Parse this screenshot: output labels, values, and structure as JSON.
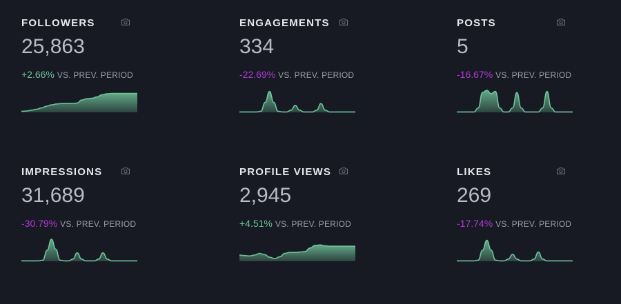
{
  "comparison_label": "VS. PREV. PERIOD",
  "colors": {
    "positive": "#6fc39a",
    "negative": "#b13ad8",
    "spark": "#6fc39a"
  },
  "cards": [
    {
      "title": "FOLLOWERS",
      "value": "25,863",
      "change": "+2.66%",
      "direction": "up",
      "icon": "camera-icon",
      "spark_style": "area-step",
      "spark": [
        0.05,
        0.06,
        0.1,
        0.14,
        0.2,
        0.28,
        0.34,
        0.38,
        0.4,
        0.4,
        0.4,
        0.42,
        0.56,
        0.62,
        0.64,
        0.7,
        0.8,
        0.84,
        0.86,
        0.86,
        0.86,
        0.86,
        0.86,
        0.86
      ]
    },
    {
      "title": "ENGAGEMENTS",
      "value": "334",
      "change": "-22.69%",
      "direction": "down",
      "icon": "camera-icon",
      "spark_style": "peaks",
      "spark": [
        0.02,
        0.02,
        0.02,
        0.02,
        0.02,
        0.05,
        0.45,
        0.95,
        0.45,
        0.05,
        0.02,
        0.02,
        0.1,
        0.32,
        0.1,
        0.02,
        0.02,
        0.02,
        0.1,
        0.4,
        0.1,
        0.02,
        0.02,
        0.02,
        0.02,
        0.02,
        0.02,
        0.02
      ]
    },
    {
      "title": "POSTS",
      "value": "5",
      "change": "-16.67%",
      "direction": "down",
      "icon": "camera-icon",
      "spark_style": "peaks",
      "spark": [
        0.02,
        0.02,
        0.02,
        0.02,
        0.02,
        0.2,
        0.9,
        1.0,
        0.85,
        0.95,
        0.2,
        0.02,
        0.02,
        0.2,
        0.9,
        0.2,
        0.02,
        0.02,
        0.02,
        0.02,
        0.2,
        0.95,
        0.2,
        0.02,
        0.02,
        0.02,
        0.02,
        0.02
      ]
    },
    {
      "title": "IMPRESSIONS",
      "value": "31,689",
      "change": "-30.79%",
      "direction": "down",
      "icon": "camera-icon",
      "spark_style": "peaks",
      "spark": [
        0.02,
        0.02,
        0.02,
        0.02,
        0.02,
        0.05,
        0.5,
        1.0,
        0.55,
        0.05,
        0.02,
        0.02,
        0.1,
        0.38,
        0.1,
        0.02,
        0.02,
        0.02,
        0.1,
        0.38,
        0.1,
        0.02,
        0.02,
        0.02,
        0.02,
        0.02,
        0.02,
        0.02
      ]
    },
    {
      "title": "PROFILE VIEWS",
      "value": "2,945",
      "change": "+4.51%",
      "direction": "up",
      "icon": "camera-icon",
      "spark_style": "area-step",
      "spark": [
        0.28,
        0.26,
        0.24,
        0.28,
        0.36,
        0.3,
        0.18,
        0.12,
        0.2,
        0.36,
        0.4,
        0.4,
        0.42,
        0.44,
        0.6,
        0.72,
        0.74,
        0.7,
        0.68,
        0.68,
        0.68,
        0.68,
        0.68,
        0.68
      ]
    },
    {
      "title": "LIKES",
      "value": "269",
      "change": "-17.74%",
      "direction": "down",
      "icon": "camera-icon",
      "spark_style": "peaks",
      "spark": [
        0.02,
        0.02,
        0.02,
        0.02,
        0.02,
        0.05,
        0.5,
        0.95,
        0.5,
        0.05,
        0.02,
        0.02,
        0.1,
        0.32,
        0.1,
        0.02,
        0.02,
        0.02,
        0.1,
        0.42,
        0.1,
        0.02,
        0.02,
        0.02,
        0.02,
        0.02,
        0.02,
        0.02
      ]
    }
  ]
}
